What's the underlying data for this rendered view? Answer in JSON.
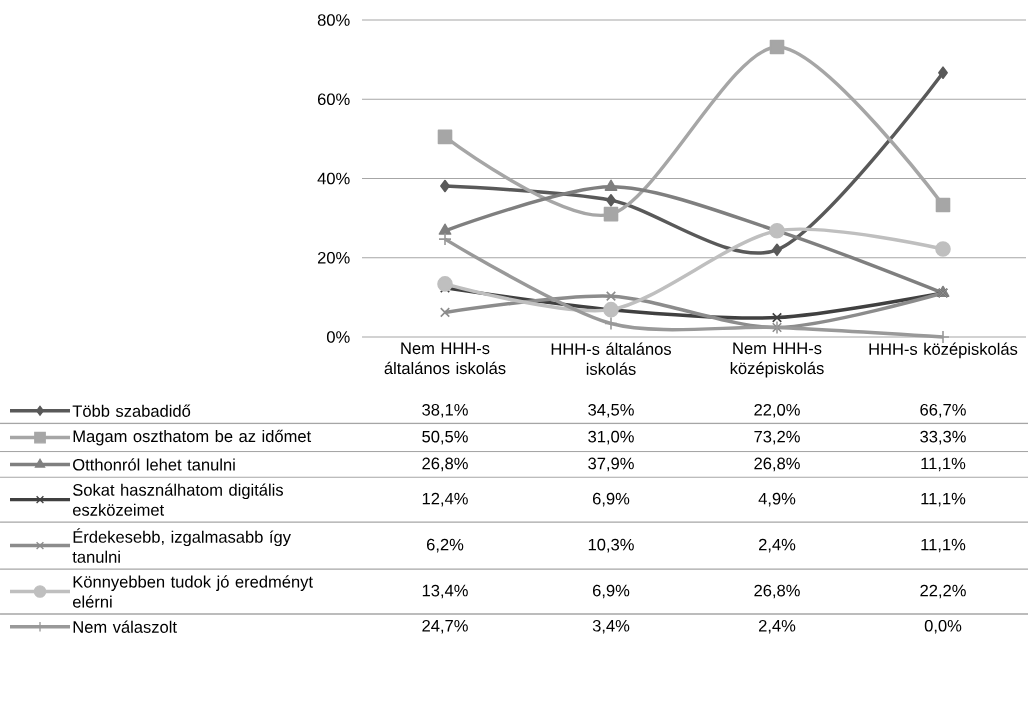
{
  "chart_data": {
    "type": "line",
    "categories": [
      "Nem HHH-s általános iskolás",
      "HHH-s általános iskolás",
      "Nem HHH-s középiskolás",
      "HHH-s középiskolás"
    ],
    "ylim": [
      0,
      80
    ],
    "yticks": [
      {
        "value": 0,
        "label": "0%"
      },
      {
        "value": 20,
        "label": "20%"
      },
      {
        "value": 40,
        "label": "40%"
      },
      {
        "value": 60,
        "label": "60%"
      },
      {
        "value": 80,
        "label": "80%"
      }
    ],
    "grid": "y",
    "legend": "bottom",
    "series": [
      {
        "name": "Több szabadidő",
        "color": "#595959",
        "marker": "diamond",
        "values": [
          38.1,
          34.5,
          22.0,
          66.7
        ],
        "value_labels": [
          "38,1%",
          "34,5%",
          "22,0%",
          "66,7%"
        ]
      },
      {
        "name": "Magam oszthatom be az időmet",
        "color": "#a6a6a6",
        "marker": "square",
        "values": [
          50.5,
          31.0,
          73.2,
          33.3
        ],
        "value_labels": [
          "50,5%",
          "31,0%",
          "73,2%",
          "33,3%"
        ]
      },
      {
        "name": "Otthonról lehet tanulni",
        "color": "#7f7f7f",
        "marker": "triangle",
        "values": [
          26.8,
          37.9,
          26.8,
          11.1
        ],
        "value_labels": [
          "26,8%",
          "37,9%",
          "26,8%",
          "11,1%"
        ]
      },
      {
        "name": "Sokat használhatom digitális eszközeimet",
        "color": "#404040",
        "marker": "cross",
        "values": [
          12.4,
          6.9,
          4.9,
          11.1
        ],
        "value_labels": [
          "12,4%",
          "6,9%",
          "4,9%",
          "11,1%"
        ]
      },
      {
        "name": "Érdekesebb, izgalmasabb így tanulni",
        "color": "#8c8c8c",
        "marker": "cross",
        "values": [
          6.2,
          10.3,
          2.4,
          11.1
        ],
        "value_labels": [
          "6,2%",
          "10,3%",
          "2,4%",
          "11,1%"
        ]
      },
      {
        "name": "Könnyebben tudok jó eredményt elérni",
        "color": "#bfbfbf",
        "marker": "circle",
        "values": [
          13.4,
          6.9,
          26.8,
          22.2
        ],
        "value_labels": [
          "13,4%",
          "6,9%",
          "26,8%",
          "22,2%"
        ]
      },
      {
        "name": "Nem válaszolt",
        "color": "#999999",
        "marker": "plus",
        "values": [
          24.7,
          3.4,
          2.4,
          0.0
        ],
        "value_labels": [
          "24,7%",
          "3,4%",
          "2,4%",
          "0,0%"
        ]
      }
    ]
  }
}
